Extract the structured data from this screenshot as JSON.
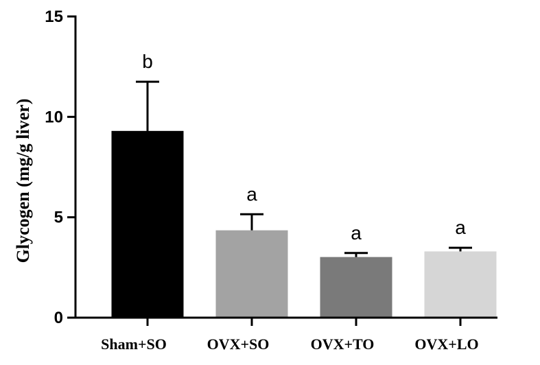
{
  "chart_data": {
    "type": "bar",
    "title": "",
    "xlabel": "",
    "ylabel": "Glycogen (mg/g liver)",
    "ylim": [
      0,
      15
    ],
    "yticks": [
      0,
      5,
      10,
      15
    ],
    "categories": [
      "Sham+SO",
      "OVX+SO",
      "OVX+TO",
      "OVX+LO"
    ],
    "values": [
      9.3,
      4.35,
      3.02,
      3.3
    ],
    "errors": [
      2.45,
      0.8,
      0.2,
      0.18
    ],
    "significance": [
      "b",
      "a",
      "a",
      "a"
    ],
    "colors": [
      "#000000",
      "#a3a3a3",
      "#7a7a7a",
      "#d6d6d6"
    ],
    "grid": false,
    "legend": "none"
  }
}
